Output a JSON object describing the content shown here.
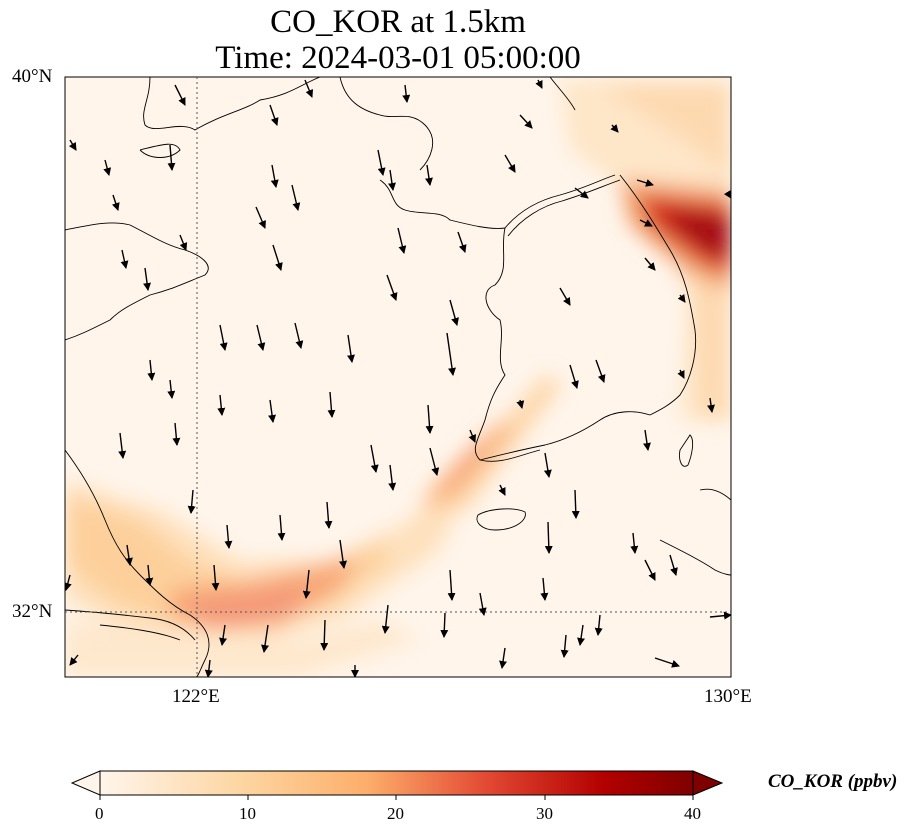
{
  "title_line1": "CO_KOR at 1.5km",
  "title_line2": "Time: 2024-03-01 05:00:00",
  "axes": {
    "lat_labels": [
      "40°N",
      "32°N"
    ],
    "lon_labels": [
      "122°E",
      "130°E"
    ],
    "gridlines": "dotted at 122°E and 32°N"
  },
  "colorbar": {
    "label": "CO_KOR (ppbv)",
    "ticks": [
      "0",
      "10",
      "20",
      "30",
      "40"
    ],
    "colormap": [
      "#fff5eb",
      "#fdd49e",
      "#fdae6b",
      "#e34a33",
      "#b30000",
      "#7f0000"
    ],
    "extend": "both"
  },
  "chart_data": {
    "type": "heatmap",
    "title": "CO_KOR at 1.5km\nTime: 2024-03-01 05:00:00",
    "lon_range": [
      120,
      130
    ],
    "lat_range": [
      31,
      40
    ],
    "value_range": [
      0,
      40
    ],
    "units": "ppbv",
    "plumes": [
      {
        "region": "East Sea near 129.5°E 37.5°N",
        "peak_ppbv": 38
      },
      {
        "region": "Yellow Sea near 123°E 32°N",
        "peak_ppbv": 20
      },
      {
        "region": "off SW Korea near 126°E 33.8°N",
        "peak_ppbv": 15
      },
      {
        "region": "coast near 120°E 33°N",
        "peak_ppbv": 9
      }
    ],
    "wind": "predominantly from the north (southward arrows)"
  }
}
